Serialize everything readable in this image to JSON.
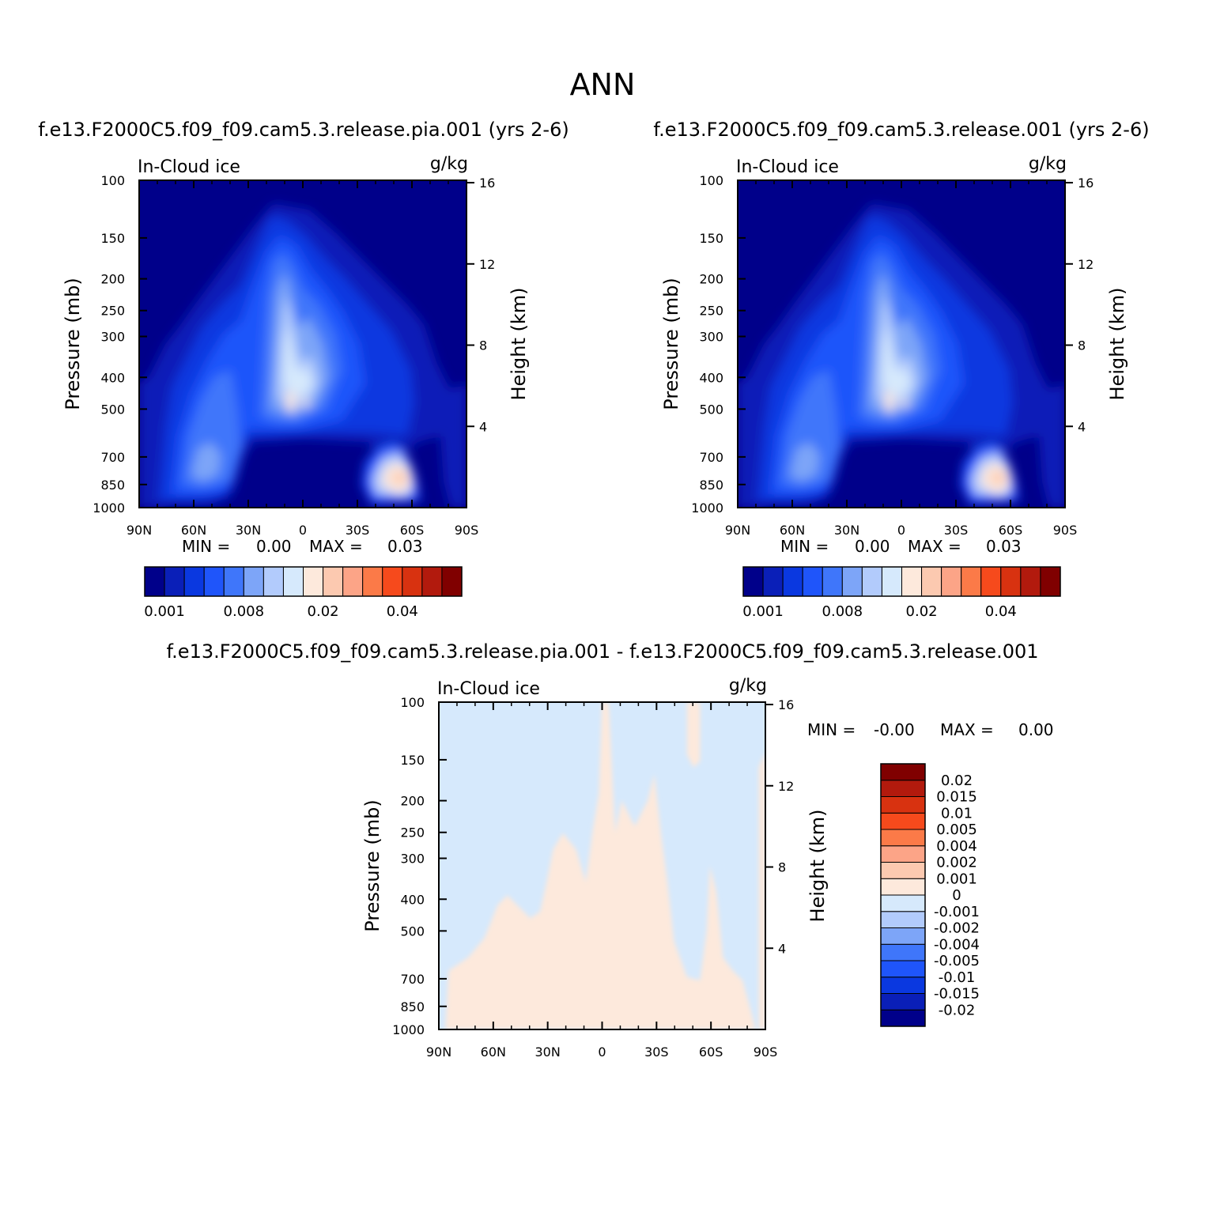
{
  "page": {
    "title": "ANN",
    "diff_title": "f.e13.F2000C5.f09_f09.cam5.3.release.pia.001 - f.e13.F2000C5.f09_f09.cam5.3.release.001"
  },
  "colors": {
    "abs_scale": [
      "#00008a",
      "#0a1fb8",
      "#0a38e0",
      "#1f55fa",
      "#3f76fa",
      "#7da5f8",
      "#b2cbfc",
      "#d6e9fc",
      "#fde9dc",
      "#fcc9b0",
      "#fca487",
      "#fb7a48",
      "#f64a1c",
      "#d83210",
      "#b21a0d",
      "#800000"
    ],
    "diff_scale": [
      "#00008a",
      "#0a1fb8",
      "#0a38e0",
      "#1f55fa",
      "#3f76fa",
      "#7da5f8",
      "#b2cbfc",
      "#d6e9fc",
      "#fde9dc",
      "#fcc9b0",
      "#fca487",
      "#fb7a48",
      "#f64a1c",
      "#d83210",
      "#b21a0d",
      "#800000"
    ]
  },
  "chart_data": [
    {
      "type": "contour",
      "panel": "test",
      "title": "f.e13.F2000C5.f09_f09.cam5.3.release.pia.001 (yrs 2-6)",
      "variable": "In-Cloud ice",
      "units": "g/kg",
      "ylabel": "Pressure (mb)",
      "y2label": "Height (km)",
      "x_ticks": [
        "90N",
        "60N",
        "30N",
        "0",
        "30S",
        "60S",
        "90S"
      ],
      "xlim": [
        90,
        -90
      ],
      "y_ticks": [
        100,
        150,
        200,
        250,
        300,
        400,
        500,
        700,
        850,
        1000
      ],
      "y_scale": "log",
      "ylim": [
        1000,
        100
      ],
      "y2_ticks": [
        4,
        8,
        12,
        16
      ],
      "min_label": "MIN =",
      "min": "0.00",
      "max_label": "MAX =",
      "max": "0.03",
      "colorbar_labels": [
        "0.001",
        "0.008",
        "0.02",
        "0.04"
      ],
      "grid": false
    },
    {
      "type": "contour",
      "panel": "control",
      "title": "f.e13.F2000C5.f09_f09.cam5.3.release.001 (yrs 2-6)",
      "variable": "In-Cloud ice",
      "units": "g/kg",
      "ylabel": "Pressure (mb)",
      "y2label": "Height (km)",
      "x_ticks": [
        "90N",
        "60N",
        "30N",
        "0",
        "30S",
        "60S",
        "90S"
      ],
      "xlim": [
        90,
        -90
      ],
      "y_ticks": [
        100,
        150,
        200,
        250,
        300,
        400,
        500,
        700,
        850,
        1000
      ],
      "y_scale": "log",
      "ylim": [
        1000,
        100
      ],
      "y2_ticks": [
        4,
        8,
        12,
        16
      ],
      "min_label": "MIN =",
      "min": "0.00",
      "max_label": "MAX =",
      "max": "0.03",
      "colorbar_labels": [
        "0.001",
        "0.008",
        "0.02",
        "0.04"
      ],
      "grid": false
    },
    {
      "type": "contour",
      "panel": "difference",
      "variable": "In-Cloud ice",
      "units": "g/kg",
      "ylabel": "Pressure (mb)",
      "y2label": "Height (km)",
      "x_ticks": [
        "90N",
        "60N",
        "30N",
        "0",
        "30S",
        "60S",
        "90S"
      ],
      "xlim": [
        90,
        -90
      ],
      "y_ticks": [
        100,
        150,
        200,
        250,
        300,
        400,
        500,
        700,
        850,
        1000
      ],
      "y_scale": "log",
      "ylim": [
        1000,
        100
      ],
      "y2_ticks": [
        4,
        8,
        12,
        16
      ],
      "min_label": "MIN =",
      "min": "-0.00",
      "max_label": "MAX =",
      "max": "0.00",
      "colorbar_labels": [
        "0.02",
        "0.015",
        "0.01",
        "0.005",
        "0.004",
        "0.002",
        "0.001",
        "0",
        "-0.001",
        "-0.002",
        "-0.004",
        "-0.005",
        "-0.01",
        "-0.015",
        "-0.02"
      ],
      "grid": false
    }
  ]
}
